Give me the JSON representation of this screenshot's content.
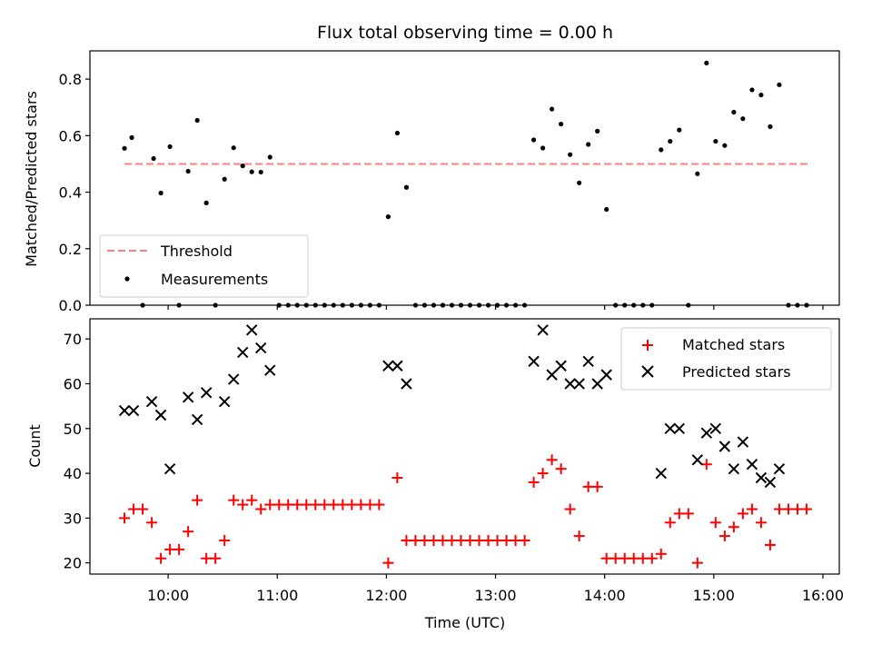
{
  "chart_data": [
    {
      "type": "scatter",
      "title": "Flux total observing time = 0.00 h",
      "xlabel": "",
      "ylabel": "Matched/Predicted stars",
      "xlim": [
        "09:17",
        "16:09"
      ],
      "ylim": [
        0,
        0.9
      ],
      "yticks": [
        0.0,
        0.2,
        0.4,
        0.6,
        0.8
      ],
      "ytick_labels": [
        "0.0",
        "0.2",
        "0.4",
        "0.6",
        "0.8"
      ],
      "xticks": [
        "10:00",
        "11:00",
        "12:00",
        "13:00",
        "14:00",
        "15:00",
        "16:00"
      ],
      "legend": {
        "placement": "lower-left",
        "entries": [
          "Threshold",
          "Measurements"
        ]
      },
      "threshold": {
        "name": "Threshold",
        "y": 0.5,
        "x_range": [
          "09:36",
          "15:53"
        ],
        "color": "#ff7f7f",
        "style": "dashed"
      },
      "series": [
        {
          "name": "Measurements",
          "color": "#000000",
          "marker": "dot",
          "x": [
            "09:36",
            "09:40",
            "09:46",
            "09:52",
            "09:56",
            "10:01",
            "10:06",
            "10:11",
            "10:16",
            "10:21",
            "10:26",
            "10:31",
            "10:36",
            "10:41",
            "10:46",
            "10:51",
            "10:56",
            "11:01",
            "11:06",
            "11:11",
            "11:16",
            "11:21",
            "11:26",
            "11:31",
            "11:36",
            "11:41",
            "11:46",
            "11:51",
            "11:56",
            "12:01",
            "12:06",
            "12:11",
            "12:16",
            "12:21",
            "12:26",
            "12:31",
            "12:36",
            "12:41",
            "12:46",
            "12:51",
            "12:56",
            "13:01",
            "13:06",
            "13:11",
            "13:16",
            "13:21",
            "13:26",
            "13:31",
            "13:36",
            "13:41",
            "13:46",
            "13:51",
            "13:56",
            "14:01",
            "14:06",
            "14:11",
            "14:16",
            "14:21",
            "14:26",
            "14:31",
            "14:36",
            "14:41",
            "14:46",
            "14:51",
            "14:56",
            "15:01",
            "15:06",
            "15:11",
            "15:16",
            "15:21",
            "15:26",
            "15:31",
            "15:36",
            "15:41",
            "15:46",
            "15:51"
          ],
          "y": [
            0.555,
            0.593,
            0.0,
            0.519,
            0.397,
            0.561,
            0.0,
            0.474,
            0.654,
            0.362,
            0.0,
            0.446,
            0.557,
            0.493,
            0.472,
            0.471,
            0.524,
            0.0,
            0.0,
            0.0,
            0.0,
            0.0,
            0.0,
            0.0,
            0.0,
            0.0,
            0.0,
            0.0,
            0.0,
            0.313,
            0.609,
            0.417,
            0.0,
            0.0,
            0.0,
            0.0,
            0.0,
            0.0,
            0.0,
            0.0,
            0.0,
            0.0,
            0.0,
            0.0,
            0.0,
            0.585,
            0.556,
            0.694,
            0.641,
            0.533,
            0.433,
            0.569,
            0.616,
            0.339,
            0.0,
            0.0,
            0.0,
            0.0,
            0.0,
            0.55,
            0.58,
            0.62,
            0.0,
            0.465,
            0.857,
            0.58,
            0.565,
            0.683,
            0.66,
            0.762,
            0.744,
            0.632,
            0.78,
            0.0,
            0.0,
            0.0
          ]
        }
      ]
    },
    {
      "type": "scatter",
      "title": "",
      "xlabel": "Time (UTC)",
      "ylabel": "Count",
      "xlim": [
        "09:17",
        "16:09"
      ],
      "ylim": [
        17.5,
        74.5
      ],
      "yticks": [
        20,
        30,
        40,
        50,
        60,
        70
      ],
      "ytick_labels": [
        "20",
        "30",
        "40",
        "50",
        "60",
        "70"
      ],
      "xticks": [
        "10:00",
        "11:00",
        "12:00",
        "13:00",
        "14:00",
        "15:00",
        "16:00"
      ],
      "legend": {
        "placement": "top-right",
        "entries": [
          "Matched stars",
          "Predicted stars"
        ]
      },
      "series": [
        {
          "name": "Matched stars",
          "color": "#ff0000",
          "marker": "plus",
          "x": [
            "09:36",
            "09:41",
            "09:46",
            "09:51",
            "09:56",
            "10:01",
            "10:06",
            "10:11",
            "10:16",
            "10:21",
            "10:26",
            "10:31",
            "10:36",
            "10:41",
            "10:46",
            "10:51",
            "10:56",
            "11:01",
            "11:06",
            "11:11",
            "11:16",
            "11:21",
            "11:26",
            "11:31",
            "11:36",
            "11:41",
            "11:46",
            "11:51",
            "11:56",
            "12:01",
            "12:06",
            "12:11",
            "12:16",
            "12:21",
            "12:26",
            "12:31",
            "12:36",
            "12:41",
            "12:46",
            "12:51",
            "12:56",
            "13:01",
            "13:06",
            "13:11",
            "13:16",
            "13:21",
            "13:26",
            "13:31",
            "13:36",
            "13:41",
            "13:46",
            "13:51",
            "13:56",
            "14:01",
            "14:06",
            "14:11",
            "14:16",
            "14:21",
            "14:26",
            "14:31",
            "14:36",
            "14:41",
            "14:46",
            "14:51",
            "14:56",
            "15:01",
            "15:06",
            "15:11",
            "15:16",
            "15:21",
            "15:26",
            "15:31",
            "15:36",
            "15:41",
            "15:46",
            "15:51"
          ],
          "y": [
            30,
            32,
            32,
            29,
            21,
            23,
            23,
            27,
            34,
            21,
            21,
            25,
            34,
            33,
            34,
            32,
            33,
            33,
            33,
            33,
            33,
            33,
            33,
            33,
            33,
            33,
            33,
            33,
            33,
            20,
            39,
            25,
            25,
            25,
            25,
            25,
            25,
            25,
            25,
            25,
            25,
            25,
            25,
            25,
            25,
            38,
            40,
            43,
            41,
            32,
            26,
            37,
            37,
            21,
            21,
            21,
            21,
            21,
            21,
            22,
            29,
            31,
            31,
            20,
            42,
            29,
            26,
            28,
            31,
            32,
            29,
            24,
            32,
            32,
            32,
            32
          ]
        },
        {
          "name": "Predicted stars",
          "color": "#000000",
          "marker": "x",
          "x": [
            "09:36",
            "09:41",
            "09:51",
            "09:56",
            "10:01",
            "10:11",
            "10:16",
            "10:21",
            "10:31",
            "10:36",
            "10:41",
            "10:46",
            "10:51",
            "10:56",
            "12:01",
            "12:06",
            "12:11",
            "13:21",
            "13:26",
            "13:31",
            "13:36",
            "13:41",
            "13:46",
            "13:51",
            "13:56",
            "14:01",
            "14:31",
            "14:36",
            "14:41",
            "14:51",
            "14:56",
            "15:01",
            "15:06",
            "15:11",
            "15:16",
            "15:21",
            "15:26",
            "15:31",
            "15:36"
          ],
          "y": [
            54,
            54,
            56,
            53,
            41,
            57,
            52,
            58,
            56,
            61,
            67,
            72,
            68,
            63,
            64,
            64,
            60,
            65,
            72,
            62,
            64,
            60,
            60,
            65,
            60,
            62,
            40,
            50,
            50,
            43,
            49,
            50,
            46,
            41,
            47,
            42,
            39,
            38,
            41
          ]
        }
      ]
    }
  ]
}
